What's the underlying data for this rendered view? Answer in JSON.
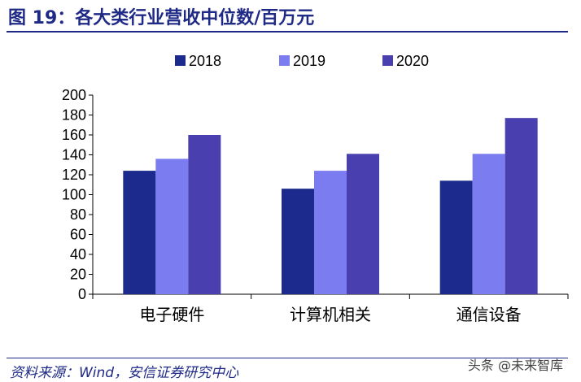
{
  "header": {
    "title": "图 19：各大类行业营收中位数/百万元"
  },
  "footer": {
    "source": "资料来源：Wind，安信证券研究中心",
    "watermark": "头条 @未来智库"
  },
  "colors": {
    "title": "#1f2a86",
    "s2018": "#1b2a8c",
    "s2019": "#7a7cf0",
    "s2020": "#4a3fae"
  },
  "chart_data": {
    "type": "bar",
    "categories": [
      "电子硬件",
      "计算机相关",
      "通信设备"
    ],
    "series": [
      {
        "name": "2018",
        "values": [
          124,
          106,
          114
        ]
      },
      {
        "name": "2019",
        "values": [
          136,
          124,
          141
        ]
      },
      {
        "name": "2020",
        "values": [
          160,
          141,
          177
        ]
      }
    ],
    "ylim": [
      0,
      200
    ],
    "yticks": [
      0,
      20,
      40,
      60,
      80,
      100,
      120,
      140,
      160,
      180,
      200
    ],
    "legend_position": "top-center",
    "grid": false
  }
}
